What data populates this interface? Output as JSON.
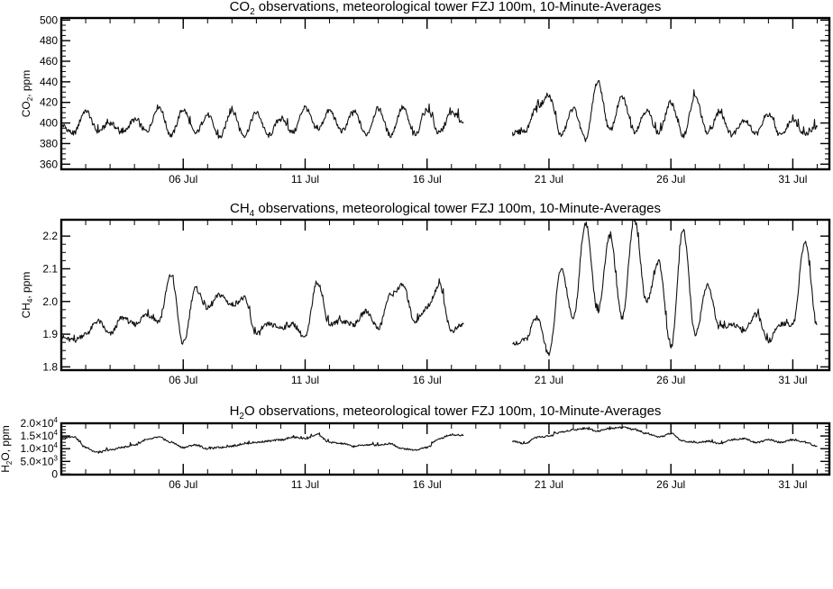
{
  "chart_data": [
    {
      "type": "line",
      "title": "CO₂ observations, meteorological tower FZJ 100m, 10-Minute-Averages",
      "title_parts": [
        "CO",
        "2",
        " observations, meteorological tower FZJ 100m, 10-Minute-Averages"
      ],
      "ylabel": "CO₂, ppm",
      "ylabel_parts": [
        "CO",
        "2",
        ", ppm"
      ],
      "xlabel": "",
      "xlim": [
        "2019-07-01",
        "2019-08-01 12:00"
      ],
      "ylim": [
        355,
        502
      ],
      "y_ticks": [
        360,
        380,
        400,
        420,
        440,
        460,
        480,
        500
      ],
      "y_tick_labels": [
        "360",
        "380",
        "400",
        "420",
        "440",
        "460",
        "480",
        "500"
      ],
      "x_ticks": [
        "2019-07-06",
        "2019-07-11",
        "2019-07-16",
        "2019-07-21",
        "2019-07-26",
        "2019-07-31"
      ],
      "x_tick_labels": [
        "06 Jul",
        "11 Jul",
        "16 Jul",
        "21 Jul",
        "26 Jul",
        "31 Jul"
      ],
      "grid": false,
      "series": [
        {
          "x": [
            "2019-07-01",
            "2019-07-01 12:00",
            "2019-07-02",
            "2019-07-02 12:00",
            "2019-07-03",
            "2019-07-03 12:00",
            "2019-07-04",
            "2019-07-04 12:00",
            "2019-07-05",
            "2019-07-05 12:00",
            "2019-07-06",
            "2019-07-06 12:00",
            "2019-07-07",
            "2019-07-07 12:00",
            "2019-07-08",
            "2019-07-08 12:00",
            "2019-07-09",
            "2019-07-09 12:00",
            "2019-07-10",
            "2019-07-10 12:00",
            "2019-07-11",
            "2019-07-11 12:00",
            "2019-07-12",
            "2019-07-12 12:00",
            "2019-07-13",
            "2019-07-13 12:00",
            "2019-07-14",
            "2019-07-14 12:00",
            "2019-07-15",
            "2019-07-15 12:00",
            "2019-07-16",
            "2019-07-16 12:00",
            "2019-07-17",
            "2019-07-17 12:00",
            null,
            "2019-07-19 12:00",
            "2019-07-20",
            "2019-07-20 12:00",
            "2019-07-21",
            "2019-07-21 12:00",
            "2019-07-22",
            "2019-07-22 12:00",
            "2019-07-23",
            "2019-07-23 12:00",
            "2019-07-24",
            "2019-07-24 12:00",
            "2019-07-25",
            "2019-07-25 12:00",
            "2019-07-26",
            "2019-07-26 12:00",
            "2019-07-27",
            "2019-07-27 12:00",
            "2019-07-28",
            "2019-07-28 12:00",
            "2019-07-29",
            "2019-07-29 12:00",
            "2019-07-30",
            "2019-07-30 12:00",
            "2019-07-31",
            "2019-07-31 12:00",
            "2019-08-01"
          ],
          "y": [
            398,
            390,
            412,
            392,
            400,
            390,
            403,
            392,
            416,
            388,
            413,
            390,
            408,
            386,
            412,
            388,
            410,
            388,
            405,
            391,
            415,
            393,
            412,
            392,
            411,
            389,
            414,
            388,
            415,
            388,
            413,
            390,
            410,
            400,
            null,
            390,
            392,
            415,
            426,
            388,
            414,
            384,
            440,
            393,
            425,
            392,
            412,
            390,
            420,
            388,
            425,
            390,
            410,
            389,
            403,
            390,
            408,
            388,
            403,
            390,
            396
          ]
        }
      ]
    },
    {
      "type": "line",
      "title": "CH₄ observations, meteorological tower FZJ 100m, 10-Minute-Averages",
      "title_parts": [
        "CH",
        "4",
        " observations, meteorological tower FZJ 100m, 10-Minute-Averages"
      ],
      "ylabel": "CH₄, ppm",
      "ylabel_parts": [
        "CH",
        "4",
        ", ppm"
      ],
      "xlabel": "",
      "xlim": [
        "2019-07-01",
        "2019-08-01 12:00"
      ],
      "ylim": [
        1.79,
        2.25
      ],
      "y_ticks": [
        1.8,
        1.9,
        2.0,
        2.1,
        2.2
      ],
      "y_tick_labels": [
        "1.8",
        "1.9",
        "2.0",
        "2.1",
        "2.2"
      ],
      "x_ticks": [
        "2019-07-06",
        "2019-07-11",
        "2019-07-16",
        "2019-07-21",
        "2019-07-26",
        "2019-07-31"
      ],
      "x_tick_labels": [
        "06 Jul",
        "11 Jul",
        "16 Jul",
        "21 Jul",
        "26 Jul",
        "31 Jul"
      ],
      "grid": false,
      "series": [
        {
          "x": [
            "2019-07-01",
            "2019-07-01 12:00",
            "2019-07-02",
            "2019-07-02 12:00",
            "2019-07-03",
            "2019-07-03 12:00",
            "2019-07-04",
            "2019-07-04 12:00",
            "2019-07-05",
            "2019-07-05 12:00",
            "2019-07-06",
            "2019-07-06 12:00",
            "2019-07-07",
            "2019-07-07 12:00",
            "2019-07-08",
            "2019-07-08 12:00",
            "2019-07-09",
            "2019-07-09 12:00",
            "2019-07-10",
            "2019-07-10 12:00",
            "2019-07-11",
            "2019-07-11 12:00",
            "2019-07-12",
            "2019-07-12 12:00",
            "2019-07-13",
            "2019-07-13 12:00",
            "2019-07-14",
            "2019-07-14 12:00",
            "2019-07-15",
            "2019-07-15 12:00",
            "2019-07-16",
            "2019-07-16 12:00",
            "2019-07-17",
            "2019-07-17 12:00",
            null,
            "2019-07-19 12:00",
            "2019-07-20",
            "2019-07-20 12:00",
            "2019-07-21",
            "2019-07-21 12:00",
            "2019-07-22",
            "2019-07-22 12:00",
            "2019-07-23",
            "2019-07-23 12:00",
            "2019-07-24",
            "2019-07-24 12:00",
            "2019-07-25",
            "2019-07-25 12:00",
            "2019-07-26",
            "2019-07-26 12:00",
            "2019-07-27",
            "2019-07-27 12:00",
            "2019-07-28",
            "2019-07-28 12:00",
            "2019-07-29",
            "2019-07-29 12:00",
            "2019-07-30",
            "2019-07-30 12:00",
            "2019-07-31",
            "2019-07-31 12:00",
            "2019-08-01"
          ],
          "y": [
            1.89,
            1.88,
            1.9,
            1.94,
            1.9,
            1.95,
            1.93,
            1.96,
            1.94,
            2.08,
            1.87,
            2.04,
            1.98,
            2.02,
            1.99,
            2.01,
            1.9,
            1.93,
            1.92,
            1.93,
            1.89,
            2.06,
            1.93,
            1.94,
            1.93,
            1.97,
            1.92,
            2.02,
            2.05,
            1.94,
            1.98,
            2.05,
            1.91,
            1.93,
            null,
            1.87,
            1.88,
            1.95,
            1.84,
            2.1,
            1.95,
            2.24,
            1.97,
            2.2,
            1.95,
            2.25,
            2.0,
            2.12,
            1.86,
            2.22,
            1.9,
            2.05,
            1.92,
            1.93,
            1.91,
            1.96,
            1.88,
            1.93,
            1.93,
            2.18,
            1.93
          ]
        }
      ]
    },
    {
      "type": "line",
      "title": "H₂O observations, meteorological tower FZJ 100m, 10-Minute-Averages",
      "title_parts": [
        "H",
        "2",
        "O observations, meteorological tower FZJ 100m, 10-Minute-Averages"
      ],
      "ylabel": "H₂O, ppm",
      "ylabel_parts": [
        "H",
        "2",
        "O, ppm"
      ],
      "xlabel": "",
      "xlim": [
        "2019-07-01",
        "2019-08-01 12:00"
      ],
      "ylim": [
        -200,
        20000
      ],
      "y_ticks": [
        0,
        5000,
        10000,
        15000,
        20000
      ],
      "y_tick_labels": [
        {
          "mantissa": "0",
          "exponent": ""
        },
        {
          "mantissa": "5.0×10",
          "exponent": "3"
        },
        {
          "mantissa": "1.0×10",
          "exponent": "4"
        },
        {
          "mantissa": "1.5×10",
          "exponent": "4"
        },
        {
          "mantissa": "2.0×10",
          "exponent": "4"
        }
      ],
      "x_ticks": [
        "2019-07-06",
        "2019-07-11",
        "2019-07-16",
        "2019-07-21",
        "2019-07-26",
        "2019-07-31"
      ],
      "x_tick_labels": [
        "06 Jul",
        "11 Jul",
        "16 Jul",
        "21 Jul",
        "26 Jul",
        "31 Jul"
      ],
      "grid": false,
      "series": [
        {
          "x": [
            "2019-07-01",
            "2019-07-01 12:00",
            "2019-07-02",
            "2019-07-02 12:00",
            "2019-07-03",
            "2019-07-03 12:00",
            "2019-07-04",
            "2019-07-04 12:00",
            "2019-07-05",
            "2019-07-05 12:00",
            "2019-07-06",
            "2019-07-06 12:00",
            "2019-07-07",
            "2019-07-07 12:00",
            "2019-07-08",
            "2019-07-08 12:00",
            "2019-07-09",
            "2019-07-09 12:00",
            "2019-07-10",
            "2019-07-10 12:00",
            "2019-07-11",
            "2019-07-11 12:00",
            "2019-07-12",
            "2019-07-12 12:00",
            "2019-07-13",
            "2019-07-13 12:00",
            "2019-07-14",
            "2019-07-14 12:00",
            "2019-07-15",
            "2019-07-15 12:00",
            "2019-07-16",
            "2019-07-16 12:00",
            "2019-07-17",
            "2019-07-17 12:00",
            null,
            "2019-07-19 12:00",
            "2019-07-20",
            "2019-07-20 12:00",
            "2019-07-21",
            "2019-07-21 12:00",
            "2019-07-22",
            "2019-07-22 12:00",
            "2019-07-23",
            "2019-07-23 12:00",
            "2019-07-24",
            "2019-07-24 12:00",
            "2019-07-25",
            "2019-07-25 12:00",
            "2019-07-26",
            "2019-07-26 12:00",
            "2019-07-27",
            "2019-07-27 12:00",
            "2019-07-28",
            "2019-07-28 12:00",
            "2019-07-29",
            "2019-07-29 12:00",
            "2019-07-30",
            "2019-07-30 12:00",
            "2019-07-31",
            "2019-07-31 12:00",
            "2019-08-01"
          ],
          "y": [
            14200,
            14800,
            10500,
            8500,
            9500,
            10500,
            11500,
            13500,
            14500,
            12500,
            10500,
            11500,
            10000,
            10500,
            11000,
            12000,
            12500,
            13000,
            13500,
            14500,
            14000,
            15500,
            12500,
            12000,
            11000,
            11500,
            11500,
            12000,
            10000,
            9500,
            10500,
            14000,
            15500,
            15200,
            null,
            13000,
            12000,
            14500,
            15000,
            16500,
            17500,
            18000,
            17000,
            18000,
            18500,
            17500,
            16000,
            14500,
            16000,
            13000,
            12500,
            13000,
            12000,
            13500,
            14000,
            12500,
            13500,
            12500,
            13500,
            12500,
            11000
          ]
        }
      ]
    }
  ]
}
